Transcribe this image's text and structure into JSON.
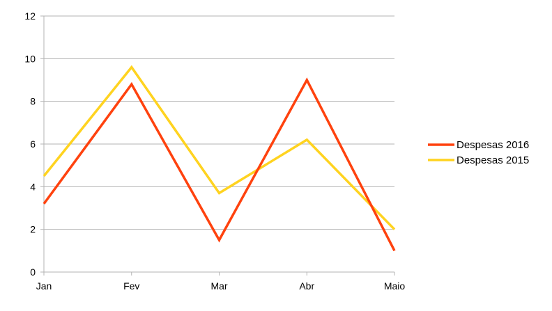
{
  "chart_data": {
    "type": "line",
    "title": "",
    "xlabel": "",
    "ylabel": "",
    "categories": [
      "Jan",
      "Fev",
      "Mar",
      "Abr",
      "Maio"
    ],
    "ylim": [
      0,
      12
    ],
    "yticks": [
      "0",
      "2",
      "4",
      "6",
      "8",
      "10",
      "12"
    ],
    "grid": true,
    "legend_position": "right",
    "series": [
      {
        "name": "Despesas 2016",
        "color": "#ff420e",
        "values": [
          3.2,
          8.8,
          1.5,
          9.0,
          1.0
        ]
      },
      {
        "name": "Despesas 2015",
        "color": "#ffd320",
        "values": [
          4.5,
          9.6,
          3.7,
          6.2,
          2.0
        ]
      }
    ]
  }
}
